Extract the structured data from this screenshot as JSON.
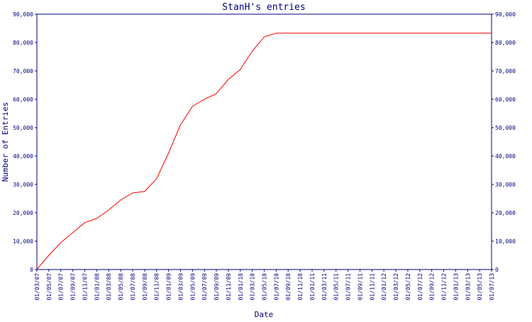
{
  "chart_data": {
    "type": "line",
    "title": "StanH's entries",
    "x_label": "Date",
    "y_label": "Number of Entries",
    "categories": [
      "01/03/07",
      "01/05/07",
      "01/07/07",
      "01/09/07",
      "01/11/07",
      "01/01/08",
      "01/03/08",
      "01/05/08",
      "01/07/08",
      "01/09/08",
      "01/11/08",
      "01/01/09",
      "01/03/09",
      "01/05/09",
      "01/07/09",
      "01/09/09",
      "01/11/09",
      "01/01/10",
      "01/03/10",
      "01/05/10",
      "01/07/10",
      "01/09/10",
      "01/11/10",
      "01/01/11",
      "01/03/11",
      "01/05/11",
      "01/07/11",
      "01/09/11",
      "01/11/11",
      "01/01/12",
      "01/03/12",
      "01/05/12",
      "01/07/12",
      "01/09/12",
      "01/11/12",
      "01/01/13",
      "01/03/13",
      "01/05/13",
      "01/07/13"
    ],
    "series": [
      {
        "name": "StanH",
        "color": "#ff0000",
        "values": [
          0,
          5000,
          9500,
          13000,
          16500,
          18000,
          21000,
          24500,
          27000,
          27500,
          32000,
          41000,
          51000,
          57500,
          60000,
          62000,
          67000,
          70500,
          77000,
          82000,
          83300,
          83300,
          83300,
          83300,
          83300,
          83300,
          83300,
          83300,
          83300,
          83300,
          83300,
          83300,
          83300,
          83300,
          83300,
          83300,
          83300,
          83300,
          83300
        ]
      }
    ],
    "ylim": [
      0,
      90000
    ],
    "yticks": [
      0,
      {
        "value": 10000,
        "label": "10,000"
      },
      {
        "value": 20000,
        "label": "20,000"
      },
      {
        "value": 30000,
        "label": "30,000"
      },
      {
        "value": 40000,
        "label": "40,000"
      },
      {
        "value": 50000,
        "label": "50,000"
      },
      {
        "value": 60000,
        "label": "60,000"
      },
      {
        "value": 70000,
        "label": "70,000"
      },
      {
        "value": 80000,
        "label": "80,000"
      },
      {
        "value": 90000,
        "label": "90,000"
      }
    ],
    "axis_color": "#000080"
  }
}
